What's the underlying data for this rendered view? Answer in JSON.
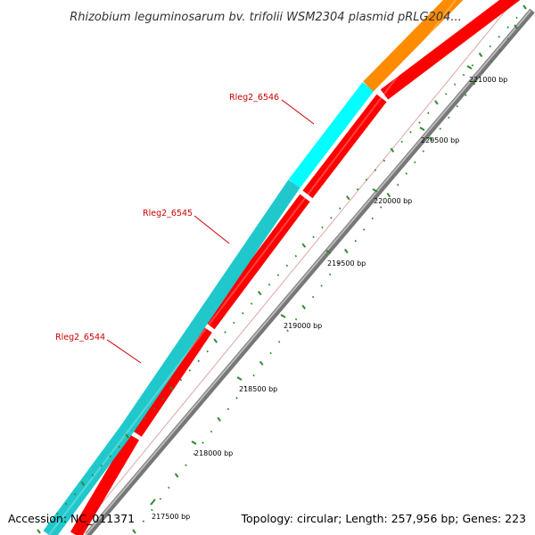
{
  "title": "Rhizobium leguminosarum bv. trifolii WSM2304 plasmid pRLG204...",
  "footer": {
    "accession": "Accession: NC_011371",
    "summary": "Topology: circular; Length: 257,956 bp; Genes: 223"
  },
  "scale_labels": [
    "217500 bp",
    "218000 bp",
    "218500 bp",
    "219000 bp",
    "219500 bp",
    "220000 bp",
    "220500 bp",
    "221000 bp"
  ],
  "genes": [
    {
      "name": "Rleg2_6544",
      "color": "#20c8cc"
    },
    {
      "name": "Rleg2_6545",
      "color": "#20c8cc"
    },
    {
      "name": "Rleg2_6546",
      "color": "#00ffff"
    }
  ],
  "colors": {
    "cds_track": "#ff0000",
    "neighbor_gene": "#ff8c00",
    "backbone": "#888888",
    "tick": "#2e8b2e",
    "gene_label": "#cc0000"
  }
}
